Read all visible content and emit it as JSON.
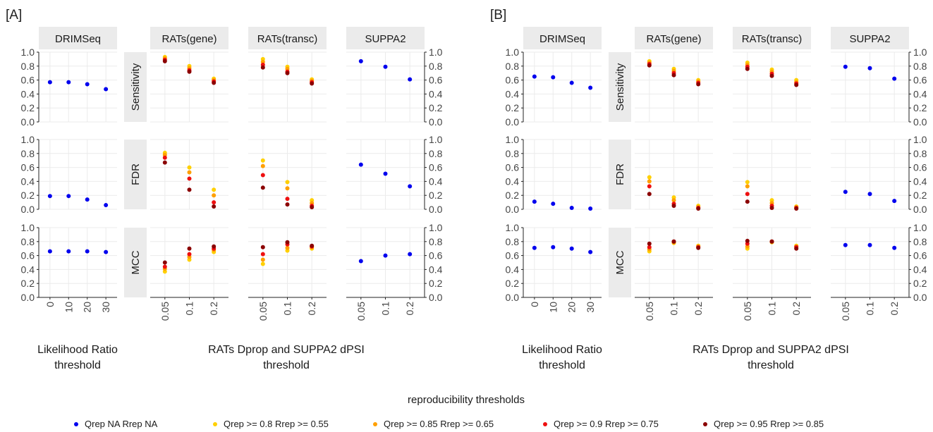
{
  "colors": {
    "NA": "#0000ee",
    "r080": "#ffd000",
    "r085": "#ffa000",
    "r090": "#ee1010",
    "r095": "#8b0000",
    "strip_bg": "#ebebeb",
    "grid": "#ebebeb"
  },
  "legend": {
    "title": "reproducibility thresholds",
    "items": [
      {
        "key": "NA",
        "label": "Qrep  NA Rrep  NA"
      },
      {
        "key": "r080",
        "label": "Qrep >= 0.8 Rrep >= 0.55"
      },
      {
        "key": "r085",
        "label": "Qrep >= 0.85 Rrep >= 0.65"
      },
      {
        "key": "r090",
        "label": "Qrep >= 0.9 Rrep >= 0.75"
      },
      {
        "key": "r095",
        "label": "Qrep >= 0.95 Rrep >= 0.85"
      }
    ]
  },
  "chart_data": [
    {
      "type": "scatter",
      "panel_label": "[A]",
      "columns": [
        "DRIMSeq",
        "RATs(gene)",
        "RATs(transc)",
        "SUPPA2"
      ],
      "rows": [
        "Sensitivity",
        "FDR",
        "MCC"
      ],
      "y_ticks": [
        "0.0",
        "0.2",
        "0.4",
        "0.6",
        "0.8",
        "1.0"
      ],
      "ylim": [
        0,
        1
      ],
      "x_categories": {
        "DRIMSeq": [
          "0",
          "10",
          "20",
          "30"
        ],
        "RATs(gene)": [
          "0.05",
          "0.1",
          "0.2"
        ],
        "RATs(transc)": [
          "0.05",
          "0.1",
          "0.2"
        ],
        "SUPPA2": [
          "0.05",
          "0.1",
          "0.2"
        ]
      },
      "xlabels": [
        "Likelihood Ratio\nthreshold",
        "RATs Dprop and SUPPA2 dPSI\nthreshold"
      ],
      "values": {
        "Sensitivity": {
          "DRIMSeq": {
            "NA": [
              0.57,
              0.57,
              0.54,
              0.47
            ]
          },
          "RATs(gene)": {
            "r080": [
              0.93,
              0.8,
              0.62
            ],
            "r085": [
              0.91,
              0.77,
              0.6
            ],
            "r090": [
              0.89,
              0.74,
              0.58
            ],
            "r095": [
              0.87,
              0.72,
              0.56
            ]
          },
          "RATs(transc)": {
            "r080": [
              0.9,
              0.79,
              0.61
            ],
            "r085": [
              0.86,
              0.76,
              0.59
            ],
            "r090": [
              0.82,
              0.72,
              0.57
            ],
            "r095": [
              0.78,
              0.7,
              0.55
            ]
          },
          "SUPPA2": {
            "NA": [
              0.87,
              0.79,
              0.61
            ]
          }
        },
        "FDR": {
          "DRIMSeq": {
            "NA": [
              0.19,
              0.19,
              0.14,
              0.06
            ]
          },
          "RATs(gene)": {
            "r080": [
              0.81,
              0.6,
              0.28
            ],
            "r085": [
              0.78,
              0.53,
              0.2
            ],
            "r090": [
              0.74,
              0.44,
              0.1
            ],
            "r095": [
              0.67,
              0.28,
              0.04
            ]
          },
          "RATs(transc)": {
            "r080": [
              0.7,
              0.39,
              0.13
            ],
            "r085": [
              0.62,
              0.3,
              0.09
            ],
            "r090": [
              0.49,
              0.15,
              0.05
            ],
            "r095": [
              0.31,
              0.07,
              0.03
            ]
          },
          "SUPPA2": {
            "NA": [
              0.64,
              0.51,
              0.33
            ]
          }
        },
        "MCC": {
          "DRIMSeq": {
            "NA": [
              0.66,
              0.66,
              0.66,
              0.65
            ]
          },
          "RATs(gene)": {
            "r080": [
              0.37,
              0.54,
              0.65
            ],
            "r085": [
              0.41,
              0.58,
              0.68
            ],
            "r090": [
              0.44,
              0.62,
              0.7
            ],
            "r095": [
              0.5,
              0.7,
              0.73
            ]
          },
          "RATs(transc)": {
            "r080": [
              0.48,
              0.67,
              0.7
            ],
            "r085": [
              0.54,
              0.71,
              0.72
            ],
            "r090": [
              0.62,
              0.76,
              0.73
            ],
            "r095": [
              0.72,
              0.79,
              0.74
            ]
          },
          "SUPPA2": {
            "NA": [
              0.52,
              0.6,
              0.62
            ]
          }
        }
      }
    },
    {
      "type": "scatter",
      "panel_label": "[B]",
      "columns": [
        "DRIMSeq",
        "RATs(gene)",
        "RATs(transc)",
        "SUPPA2"
      ],
      "rows": [
        "Sensitivity",
        "FDR",
        "MCC"
      ],
      "y_ticks": [
        "0.0",
        "0.2",
        "0.4",
        "0.6",
        "0.8",
        "1.0"
      ],
      "ylim": [
        0,
        1
      ],
      "x_categories": {
        "DRIMSeq": [
          "0",
          "10",
          "20",
          "30"
        ],
        "RATs(gene)": [
          "0.05",
          "0.1",
          "0.2"
        ],
        "RATs(transc)": [
          "0.05",
          "0.1",
          "0.2"
        ],
        "SUPPA2": [
          "0.05",
          "0.1",
          "0.2"
        ]
      },
      "xlabels": [
        "Likelihood Ratio\nthreshold",
        "RATs Dprop and SUPPA2 dPSI\nthreshold"
      ],
      "values": {
        "Sensitivity": {
          "DRIMSeq": {
            "NA": [
              0.65,
              0.64,
              0.56,
              0.49
            ]
          },
          "RATs(gene)": {
            "r080": [
              0.87,
              0.76,
              0.6
            ],
            "r085": [
              0.85,
              0.73,
              0.58
            ],
            "r090": [
              0.83,
              0.7,
              0.56
            ],
            "r095": [
              0.81,
              0.67,
              0.54
            ]
          },
          "RATs(transc)": {
            "r080": [
              0.85,
              0.75,
              0.6
            ],
            "r085": [
              0.82,
              0.72,
              0.57
            ],
            "r090": [
              0.79,
              0.69,
              0.55
            ],
            "r095": [
              0.76,
              0.66,
              0.53
            ]
          },
          "SUPPA2": {
            "NA": [
              0.79,
              0.77,
              0.62
            ]
          }
        },
        "FDR": {
          "DRIMSeq": {
            "NA": [
              0.11,
              0.08,
              0.02,
              0.01
            ]
          },
          "RATs(gene)": {
            "r080": [
              0.46,
              0.17,
              0.05
            ],
            "r085": [
              0.4,
              0.13,
              0.03
            ],
            "r090": [
              0.33,
              0.08,
              0.02
            ],
            "r095": [
              0.22,
              0.05,
              0.01
            ]
          },
          "RATs(transc)": {
            "r080": [
              0.39,
              0.13,
              0.04
            ],
            "r085": [
              0.33,
              0.09,
              0.03
            ],
            "r090": [
              0.22,
              0.05,
              0.02
            ],
            "r095": [
              0.11,
              0.02,
              0.01
            ]
          },
          "SUPPA2": {
            "NA": [
              0.25,
              0.22,
              0.12
            ]
          }
        },
        "MCC": {
          "DRIMSeq": {
            "NA": [
              0.71,
              0.72,
              0.7,
              0.65
            ]
          },
          "RATs(gene)": {
            "r080": [
              0.66,
              0.78,
              0.74
            ],
            "r085": [
              0.69,
              0.79,
              0.73
            ],
            "r090": [
              0.72,
              0.8,
              0.72
            ],
            "r095": [
              0.77,
              0.8,
              0.71
            ]
          },
          "RATs(transc)": {
            "r080": [
              0.7,
              0.79,
              0.74
            ],
            "r085": [
              0.73,
              0.8,
              0.73
            ],
            "r090": [
              0.77,
              0.8,
              0.72
            ],
            "r095": [
              0.81,
              0.8,
              0.7
            ]
          },
          "SUPPA2": {
            "NA": [
              0.75,
              0.75,
              0.71
            ]
          }
        }
      }
    }
  ]
}
